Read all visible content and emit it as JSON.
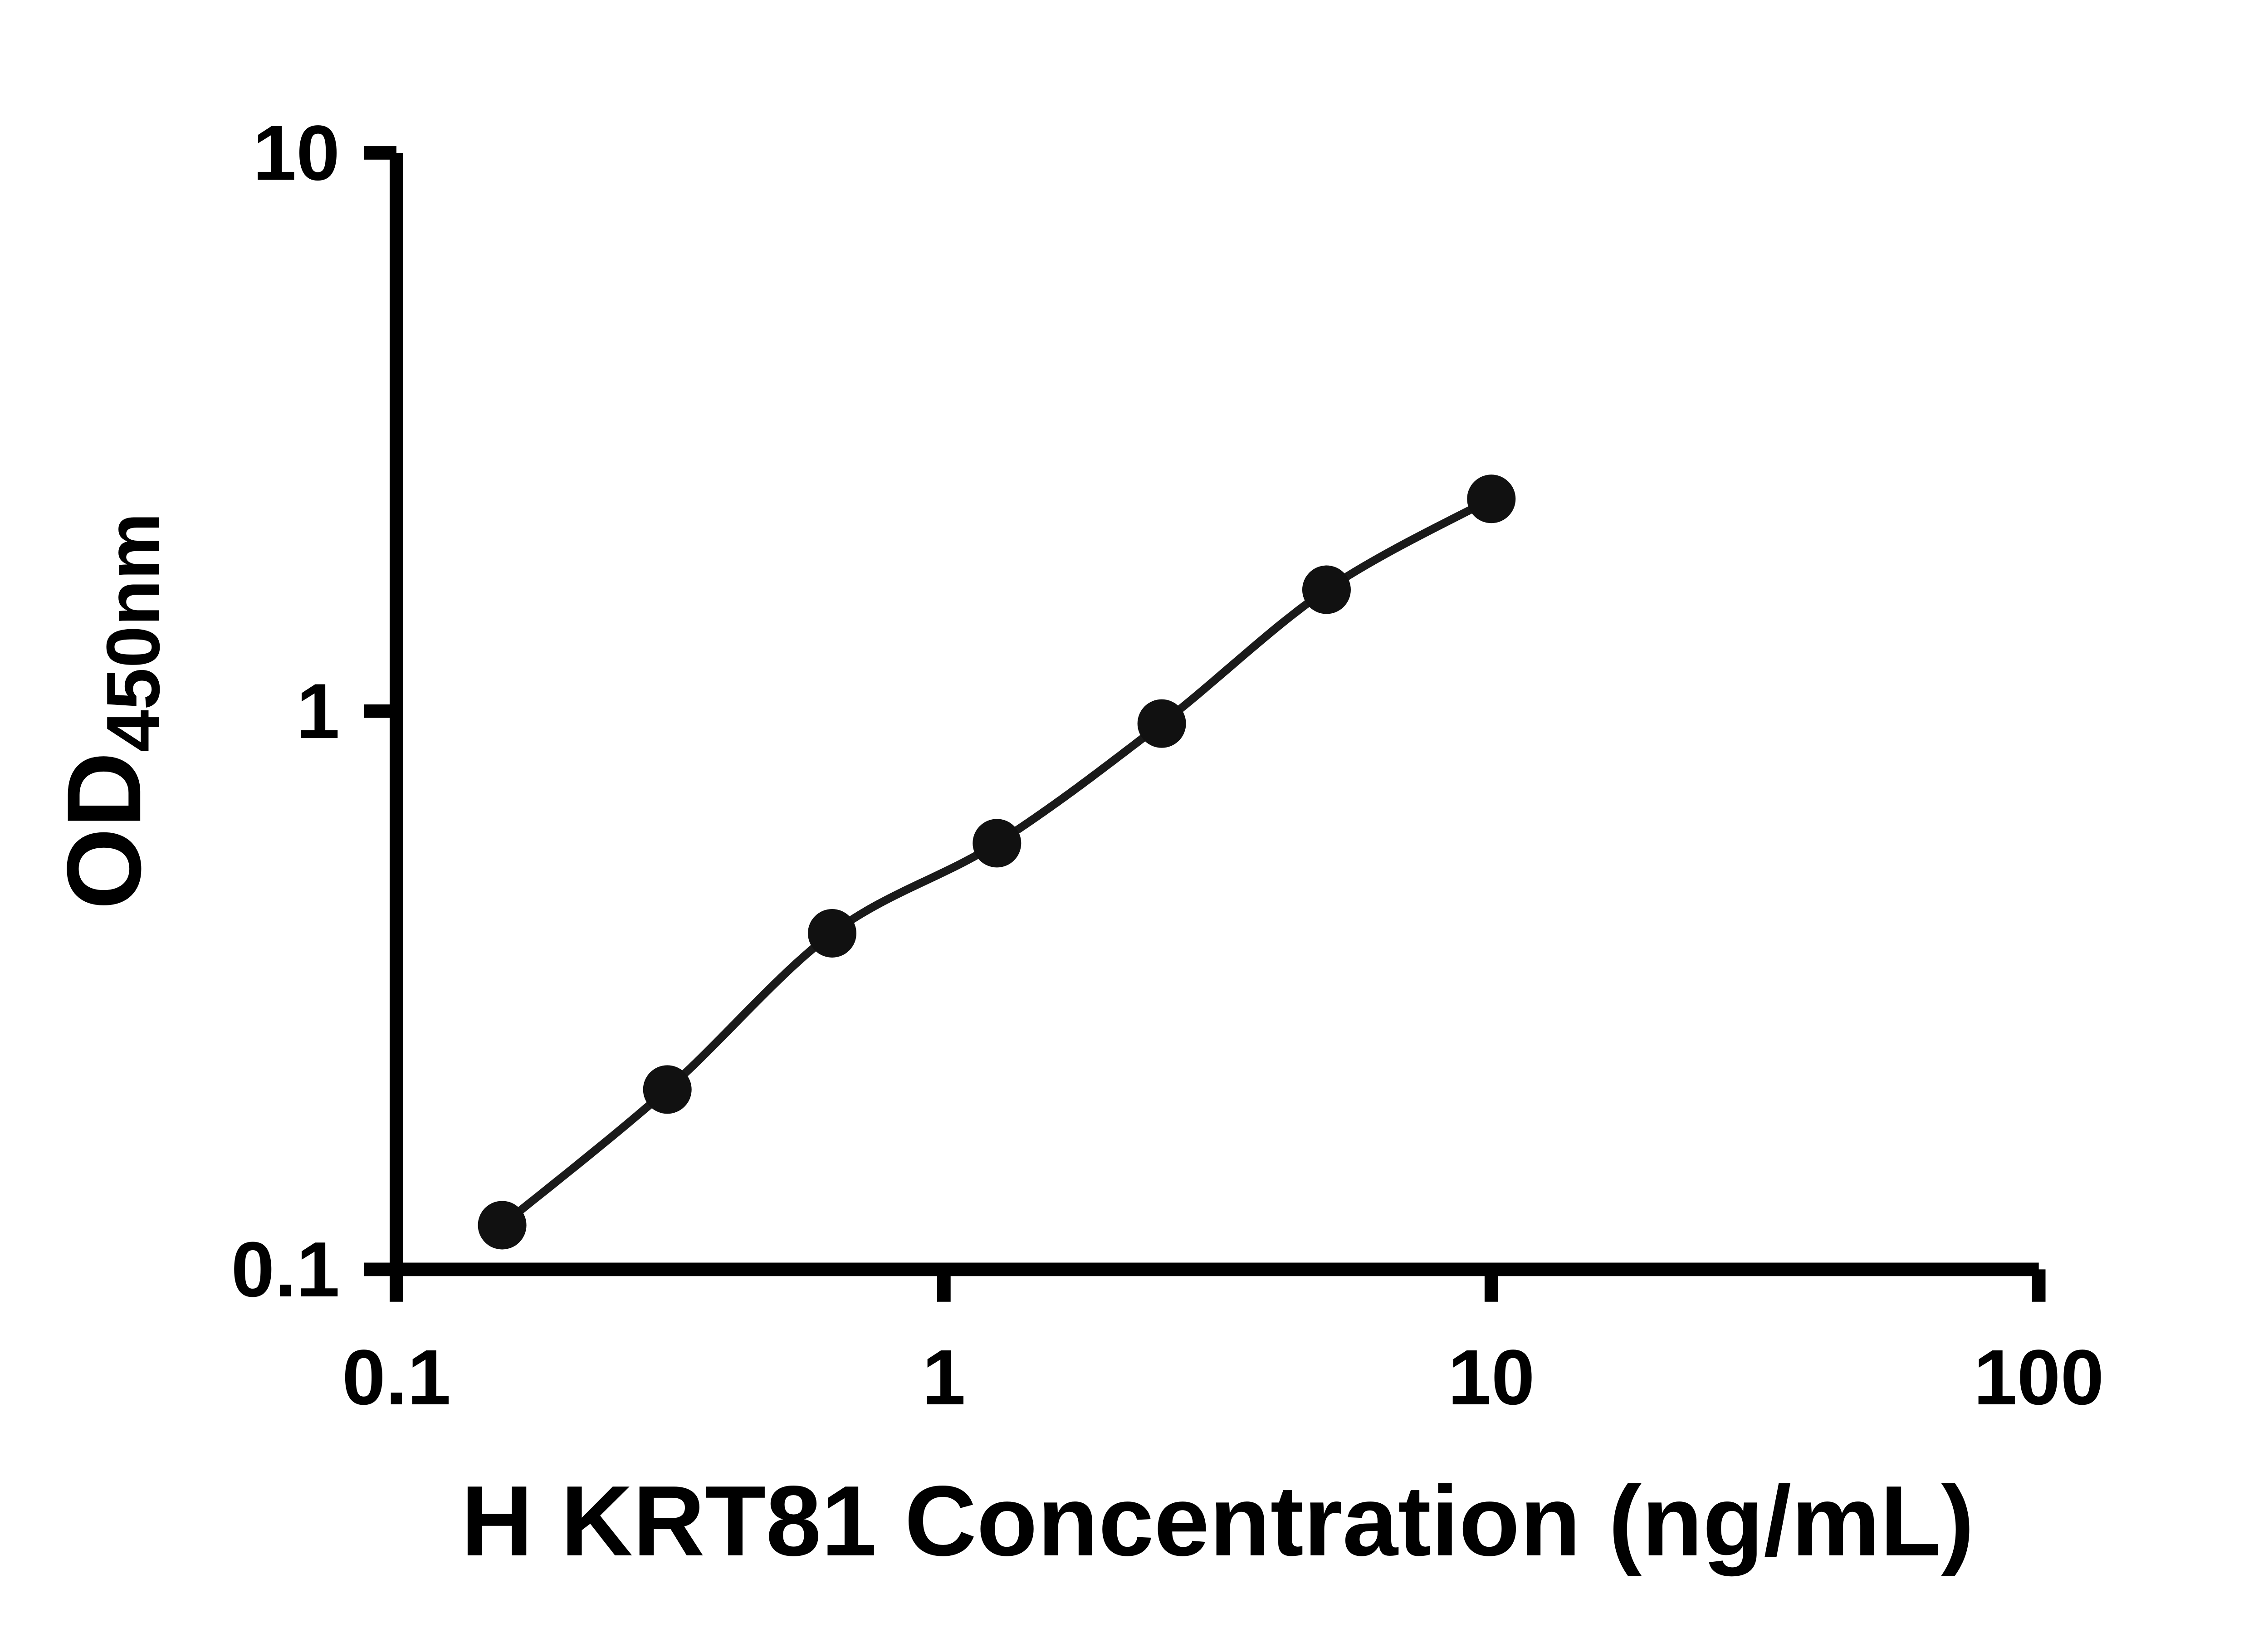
{
  "figure": {
    "background": "#ffffff",
    "axis_color": "#000000",
    "line_color": "#1a1a1a",
    "marker_color": "#111111"
  },
  "chart_data": {
    "type": "scatter",
    "subtype": "standard-curve-with-fit-line",
    "title": "",
    "xlabel": "H KRT81 Concentration (ng/mL)",
    "ylabel_main": "OD",
    "ylabel_sub": "450nm",
    "x_scale": "log",
    "y_scale": "log",
    "xlim": [
      0.1,
      100
    ],
    "ylim": [
      0.1,
      10
    ],
    "x_ticks": [
      0.1,
      1,
      10,
      100
    ],
    "x_tick_labels": [
      "0.1",
      "1",
      "10",
      "100"
    ],
    "y_ticks": [
      0.1,
      1,
      10
    ],
    "y_tick_labels": [
      "0.1",
      "1",
      "10"
    ],
    "grid": false,
    "legend": null,
    "marker": "circle",
    "x": [
      0.156,
      0.3125,
      0.625,
      1.25,
      2.5,
      5,
      10
    ],
    "y": [
      0.12,
      0.21,
      0.4,
      0.58,
      0.95,
      1.65,
      2.4
    ]
  }
}
